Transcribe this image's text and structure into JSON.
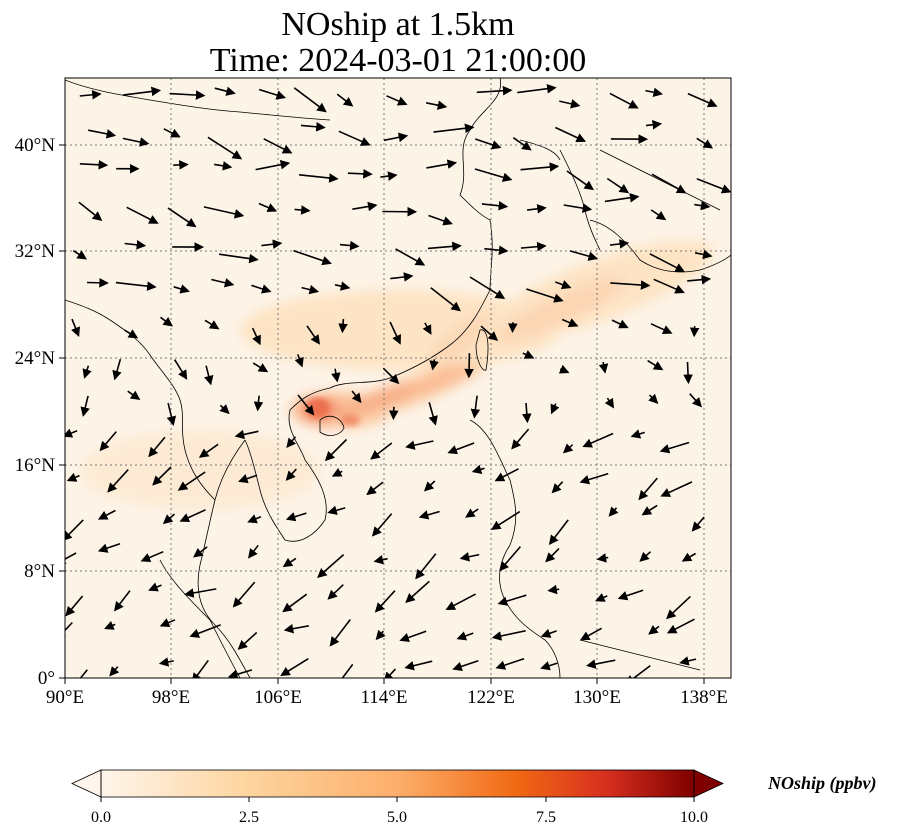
{
  "title": {
    "line1": "NOship at 1.5km",
    "line2": "Time: 2024-03-01 21:00:00"
  },
  "map": {
    "extent": {
      "lon": [
        90,
        140
      ],
      "lat": [
        0,
        45
      ]
    },
    "x_ticks": [
      {
        "lon": 90,
        "label": "90°E"
      },
      {
        "lon": 98,
        "label": "98°E"
      },
      {
        "lon": 106,
        "label": "106°E"
      },
      {
        "lon": 114,
        "label": "114°E"
      },
      {
        "lon": 122,
        "label": "122°E"
      },
      {
        "lon": 130,
        "label": "130°E"
      },
      {
        "lon": 138,
        "label": "138°E"
      }
    ],
    "y_ticks": [
      {
        "lat": 0,
        "label": "0°"
      },
      {
        "lat": 8,
        "label": "8°N"
      },
      {
        "lat": 16,
        "label": "16°N"
      },
      {
        "lat": 24,
        "label": "24°N"
      },
      {
        "lat": 32,
        "label": "32°N"
      },
      {
        "lat": 40,
        "label": "40°N"
      }
    ],
    "gridlines": true,
    "colors": {
      "background": "#fdf4e8",
      "coast": "#000000",
      "grid": "#777777"
    }
  },
  "colorbar": {
    "title": "NOship (ppbv)",
    "min": 0,
    "max": 10,
    "ticks": [
      "0.0",
      "2.5",
      "5.0",
      "7.5",
      "10.0"
    ],
    "extend": "both",
    "colors": [
      "#fff5eb",
      "#fdd49e",
      "#fdae6b",
      "#f16913",
      "#d7301f",
      "#7f0000"
    ]
  }
}
